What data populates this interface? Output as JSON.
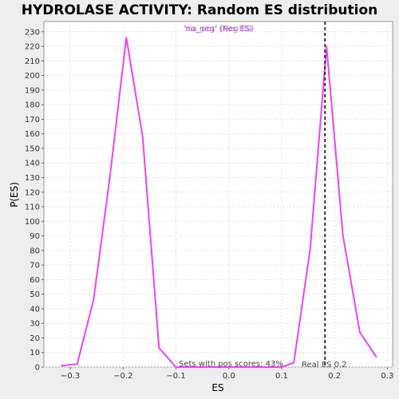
{
  "chart_data": {
    "type": "line",
    "title": "HYDROLASE ACTIVITY: Random ES distribution",
    "xlabel": "ES",
    "ylabel": "P(ES)",
    "xlim": [
      -0.35,
      0.31
    ],
    "ylim": [
      0,
      237
    ],
    "xticks": [
      -0.3,
      -0.2,
      -0.1,
      0.0,
      0.1,
      0.2,
      0.3
    ],
    "xtick_labels": [
      "−0.3",
      "−0.2",
      "−0.1",
      "0.0",
      "0.1",
      "0.2",
      "0.3"
    ],
    "yticks": [
      0,
      10,
      20,
      30,
      40,
      50,
      60,
      70,
      80,
      90,
      100,
      110,
      120,
      130,
      140,
      150,
      160,
      170,
      180,
      190,
      200,
      210,
      220,
      230
    ],
    "grid": true,
    "legend": {
      "placement": "top-center",
      "entries": [
        {
          "label": "'na_neg' (Neg ES)",
          "color": "#bb44cc"
        },
        {
          "label": "'na_pos' (Pos ES)",
          "color": "#8844cc"
        }
      ]
    },
    "series": [
      {
        "color": "#ee44ee",
        "x": [
          -0.317,
          -0.287,
          -0.256,
          -0.225,
          -0.194,
          -0.163,
          -0.132,
          -0.1,
          0.1,
          0.123,
          0.154,
          0.185,
          0.216,
          0.248,
          0.279
        ],
        "y": [
          1,
          2,
          46,
          131,
          226,
          158,
          13,
          0,
          0,
          3,
          81,
          220,
          90,
          24,
          7
        ]
      }
    ],
    "vline": {
      "x": 0.182,
      "style": "dashed",
      "color": "#333333"
    },
    "annotations": {
      "pos_scores": "Sets with pos scores: 43%",
      "real_es": "Real ES 0.2"
    }
  }
}
